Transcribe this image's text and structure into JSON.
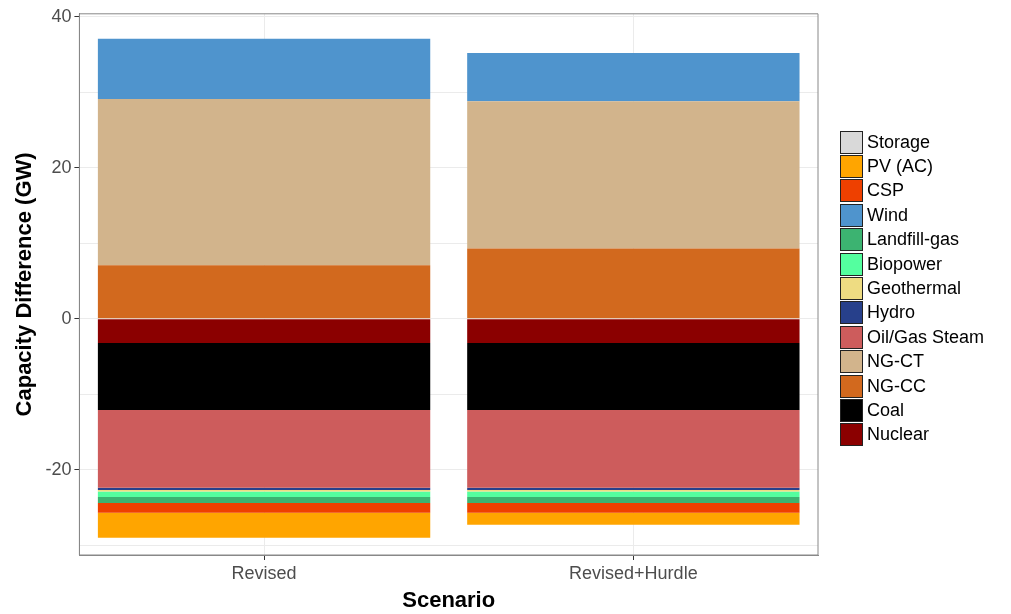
{
  "chart_data": {
    "type": "bar",
    "stacked": true,
    "xlabel": "Scenario",
    "ylabel": "Capacity Difference (GW)",
    "categories": [
      "Revised",
      "Revised+Hurdle"
    ],
    "series": [
      {
        "name": "Nuclear",
        "color": "#8b0000",
        "values": [
          -3.2,
          -3.2
        ]
      },
      {
        "name": "Coal",
        "color": "#000000",
        "values": [
          -8.9,
          -8.9
        ]
      },
      {
        "name": "NG-CC",
        "color": "#d2691e",
        "values": [
          7.1,
          9.3
        ]
      },
      {
        "name": "NG-CT",
        "color": "#d2b48c",
        "values": [
          22,
          19.5
        ]
      },
      {
        "name": "Oil/Gas Steam",
        "color": "#cd5c5c",
        "values": [
          -10.3,
          -10.3
        ]
      },
      {
        "name": "Hydro",
        "color": "#27408b",
        "values": [
          -0.3,
          -0.3
        ]
      },
      {
        "name": "Geothermal",
        "color": "#eedc82",
        "values": [
          -0.2,
          -0.2
        ]
      },
      {
        "name": "Biopower",
        "color": "#54ff9f",
        "values": [
          -0.7,
          -0.7
        ]
      },
      {
        "name": "Landfill-gas",
        "color": "#3cb371",
        "values": [
          -0.8,
          -0.8
        ]
      },
      {
        "name": "Wind",
        "color": "#4f94cd",
        "values": [
          8,
          6.4
        ]
      },
      {
        "name": "CSP",
        "color": "#ee4000",
        "values": [
          -1.3,
          -1.3
        ]
      },
      {
        "name": "PV (AC)",
        "color": "#ffa500",
        "values": [
          -3.3,
          -1.6
        ]
      },
      {
        "name": "Storage",
        "color": "#d9d9d9",
        "values": [
          0,
          0
        ]
      }
    ],
    "ylim": [
      -31.3,
      40.4
    ],
    "yticks": [
      {
        "value": -30,
        "label": null
      },
      -20,
      {
        "value": -10,
        "label": null
      },
      0,
      {
        "value": 10,
        "label": null
      },
      20,
      {
        "value": 30,
        "label": null
      },
      40
    ],
    "grid": true,
    "legend": "right"
  }
}
